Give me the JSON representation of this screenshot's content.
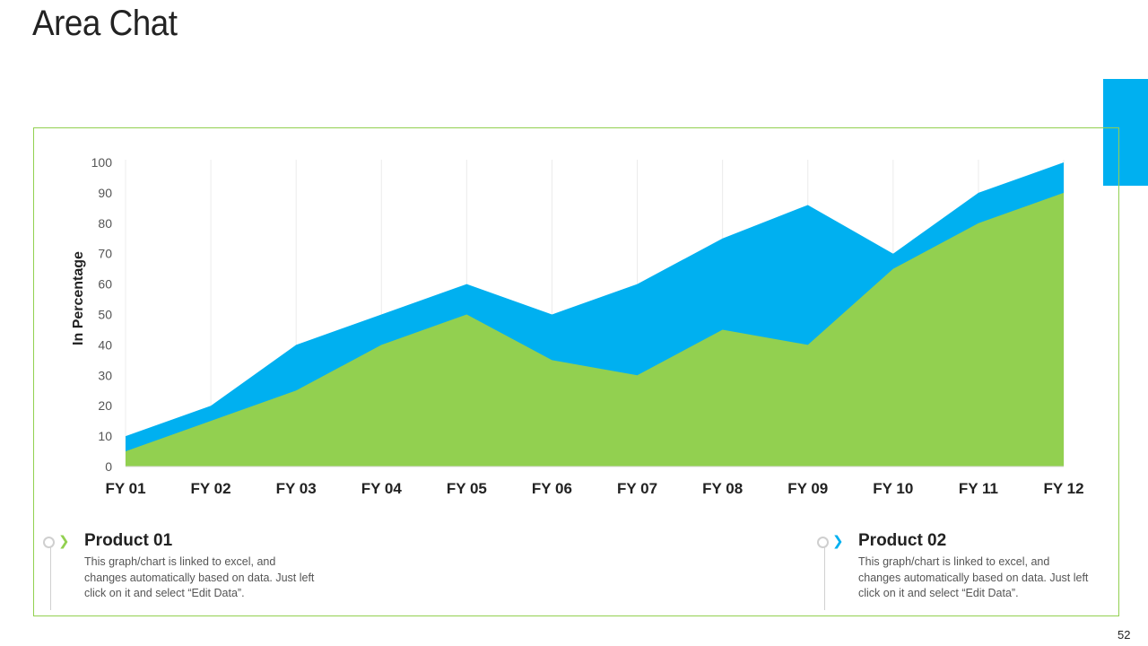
{
  "slide": {
    "title": "Area Chat",
    "page_number": "52",
    "accent_color": "#00b0f0",
    "frame_color": "#92d050"
  },
  "chart_data": {
    "type": "area",
    "title": "",
    "xlabel": "",
    "ylabel": "In Percentage",
    "ylim": [
      0,
      100
    ],
    "yticks": [
      0,
      10,
      20,
      30,
      40,
      50,
      60,
      70,
      80,
      90,
      100
    ],
    "categories": [
      "FY 01",
      "FY 02",
      "FY 03",
      "FY 04",
      "FY 05",
      "FY 06",
      "FY 07",
      "FY 08",
      "FY 09",
      "FY 10",
      "FY 11",
      "FY 12"
    ],
    "grid": "vertical",
    "series": [
      {
        "name": "Product 02",
        "color": "#00b0f0",
        "values": [
          10,
          20,
          40,
          50,
          60,
          50,
          60,
          75,
          86,
          70,
          90,
          100
        ]
      },
      {
        "name": "Product 01",
        "color": "#92d050",
        "values": [
          5,
          15,
          25,
          40,
          50,
          35,
          30,
          45,
          40,
          65,
          80,
          90
        ]
      }
    ]
  },
  "legend": [
    {
      "title": "Product 01",
      "chevron": "❯",
      "color": "#92d050",
      "description": "This graph/chart is linked to excel, and changes automatically based on data. Just left click on it and select “Edit Data”."
    },
    {
      "title": "Product 02",
      "chevron": "❯",
      "color": "#00b0f0",
      "description": "This graph/chart is linked to excel, and changes automatically based on data. Just left click on it and select “Edit Data”."
    }
  ]
}
